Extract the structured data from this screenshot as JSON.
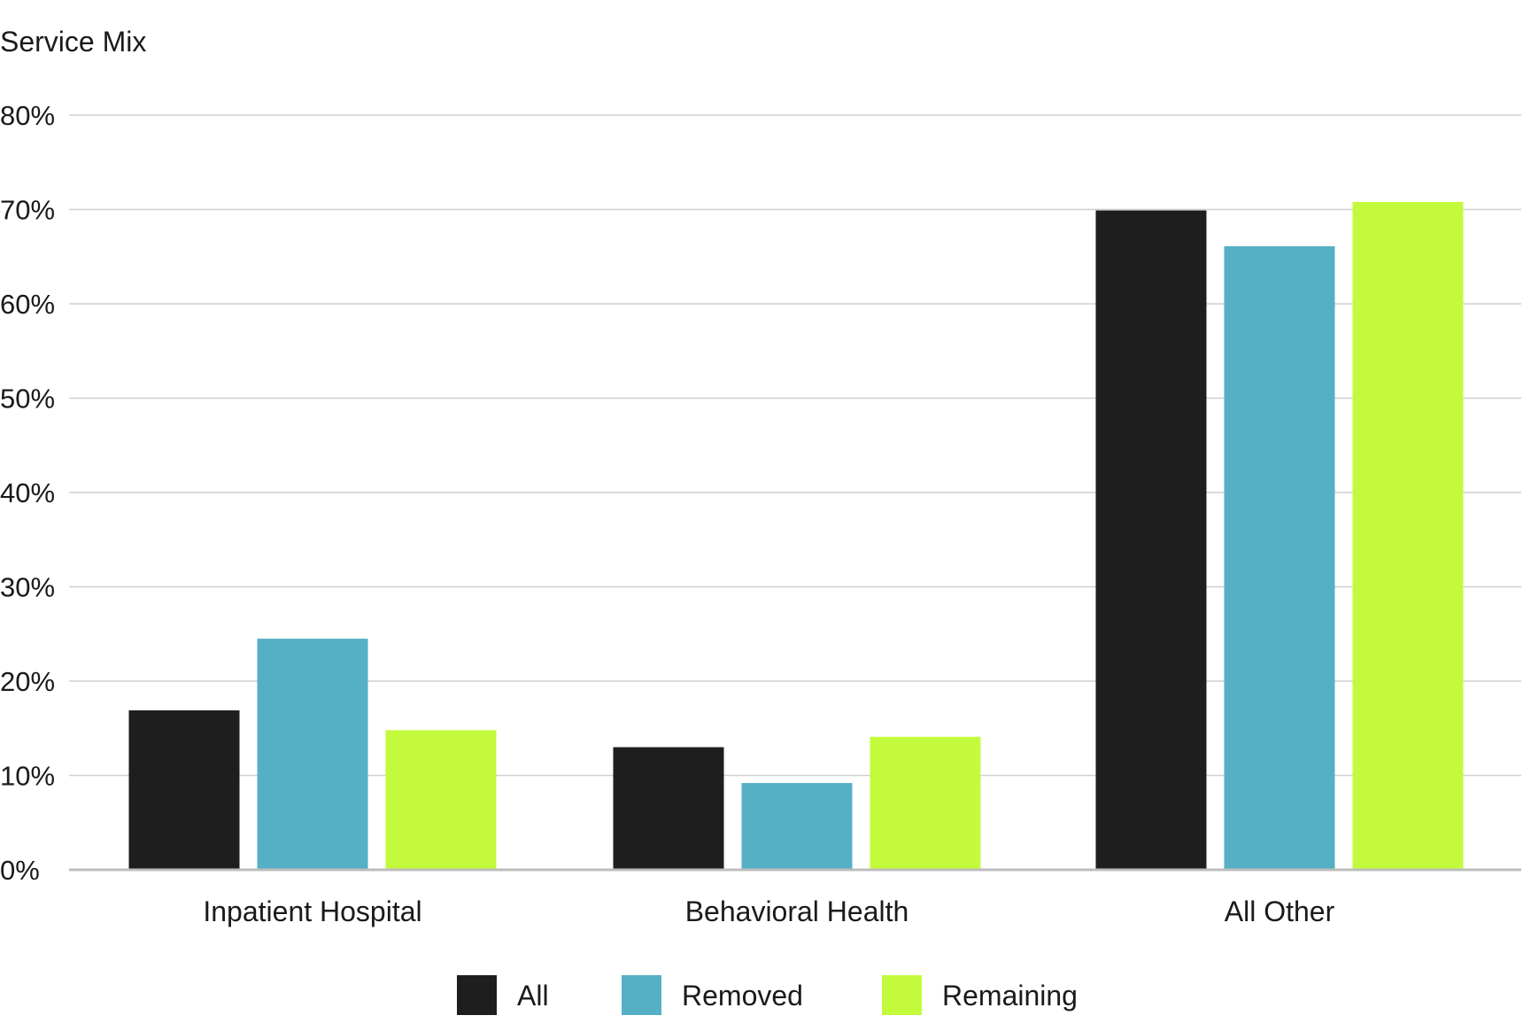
{
  "chart_data": {
    "type": "bar",
    "title": "",
    "ylabel": "Service Mix",
    "xlabel": "",
    "categories": [
      "Inpatient Hospital",
      "Behavioral Health",
      "All Other"
    ],
    "series": [
      {
        "name": "All",
        "color": "#1e1e1e",
        "values": [
          16.9,
          13.0,
          69.9
        ]
      },
      {
        "name": "Removed",
        "color": "#55afc5",
        "values": [
          24.5,
          9.2,
          66.1
        ]
      },
      {
        "name": "Remaining",
        "color": "#c3fb3c",
        "values": [
          14.8,
          14.1,
          70.8
        ]
      }
    ],
    "ylim": [
      0,
      80
    ],
    "yticks": [
      0,
      10,
      20,
      30,
      40,
      50,
      60,
      70,
      80
    ],
    "ytick_labels": [
      "0%",
      "10%",
      "20%",
      "30%",
      "40%",
      "50%",
      "60%",
      "70%",
      "80%"
    ],
    "grid": true,
    "legend_position": "bottom-center"
  }
}
